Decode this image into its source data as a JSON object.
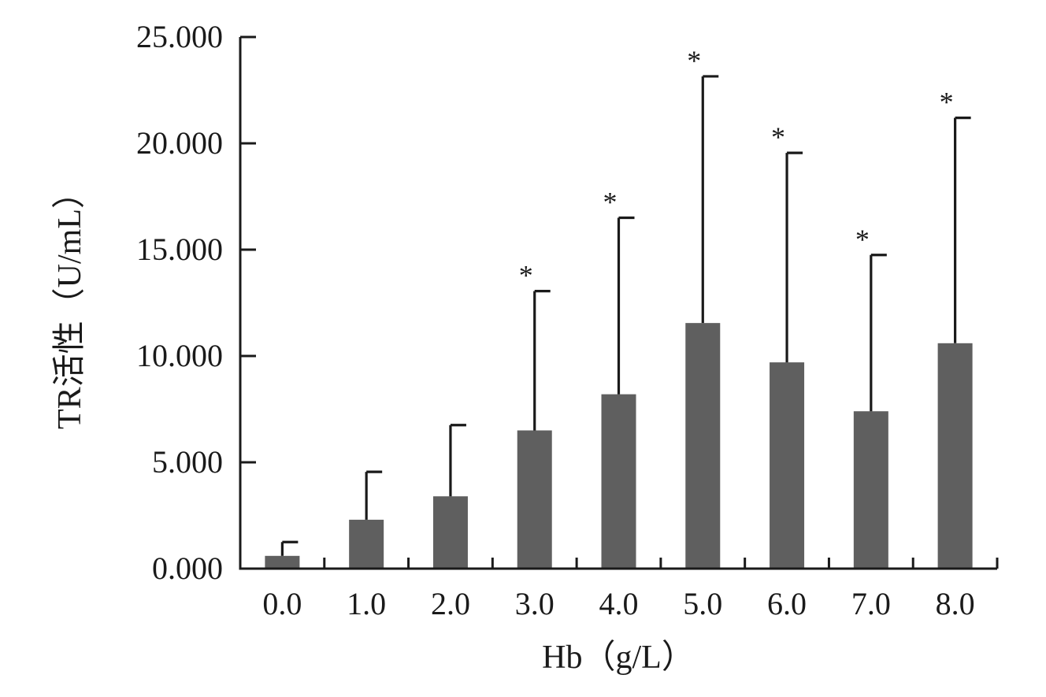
{
  "chart_data": {
    "type": "bar",
    "xlabel": "Hb（g/L）",
    "ylabel": "TR活性（U/mL）",
    "categories": [
      "0.0",
      "1.0",
      "2.0",
      "3.0",
      "4.0",
      "5.0",
      "6.0",
      "7.0",
      "8.0"
    ],
    "values": [
      0.6,
      2.3,
      3.4,
      6.5,
      8.2,
      11.55,
      9.7,
      7.4,
      10.6
    ],
    "error_upper": [
      1.25,
      4.55,
      6.75,
      13.05,
      16.5,
      23.15,
      19.55,
      14.75,
      21.2
    ],
    "significance": [
      "",
      "",
      "",
      "*",
      "*",
      "*",
      "*",
      "*",
      "*"
    ],
    "ylim": [
      0,
      25
    ],
    "yticks": [
      0,
      5,
      10,
      15,
      20,
      25
    ],
    "ytick_labels": [
      "0.000",
      "5.000",
      "10.000",
      "15.000",
      "20.000",
      "25.000"
    ],
    "grid": false,
    "legend": "none",
    "bar_color": "#5f5f5f",
    "axis_color": "#1a1a1a"
  }
}
